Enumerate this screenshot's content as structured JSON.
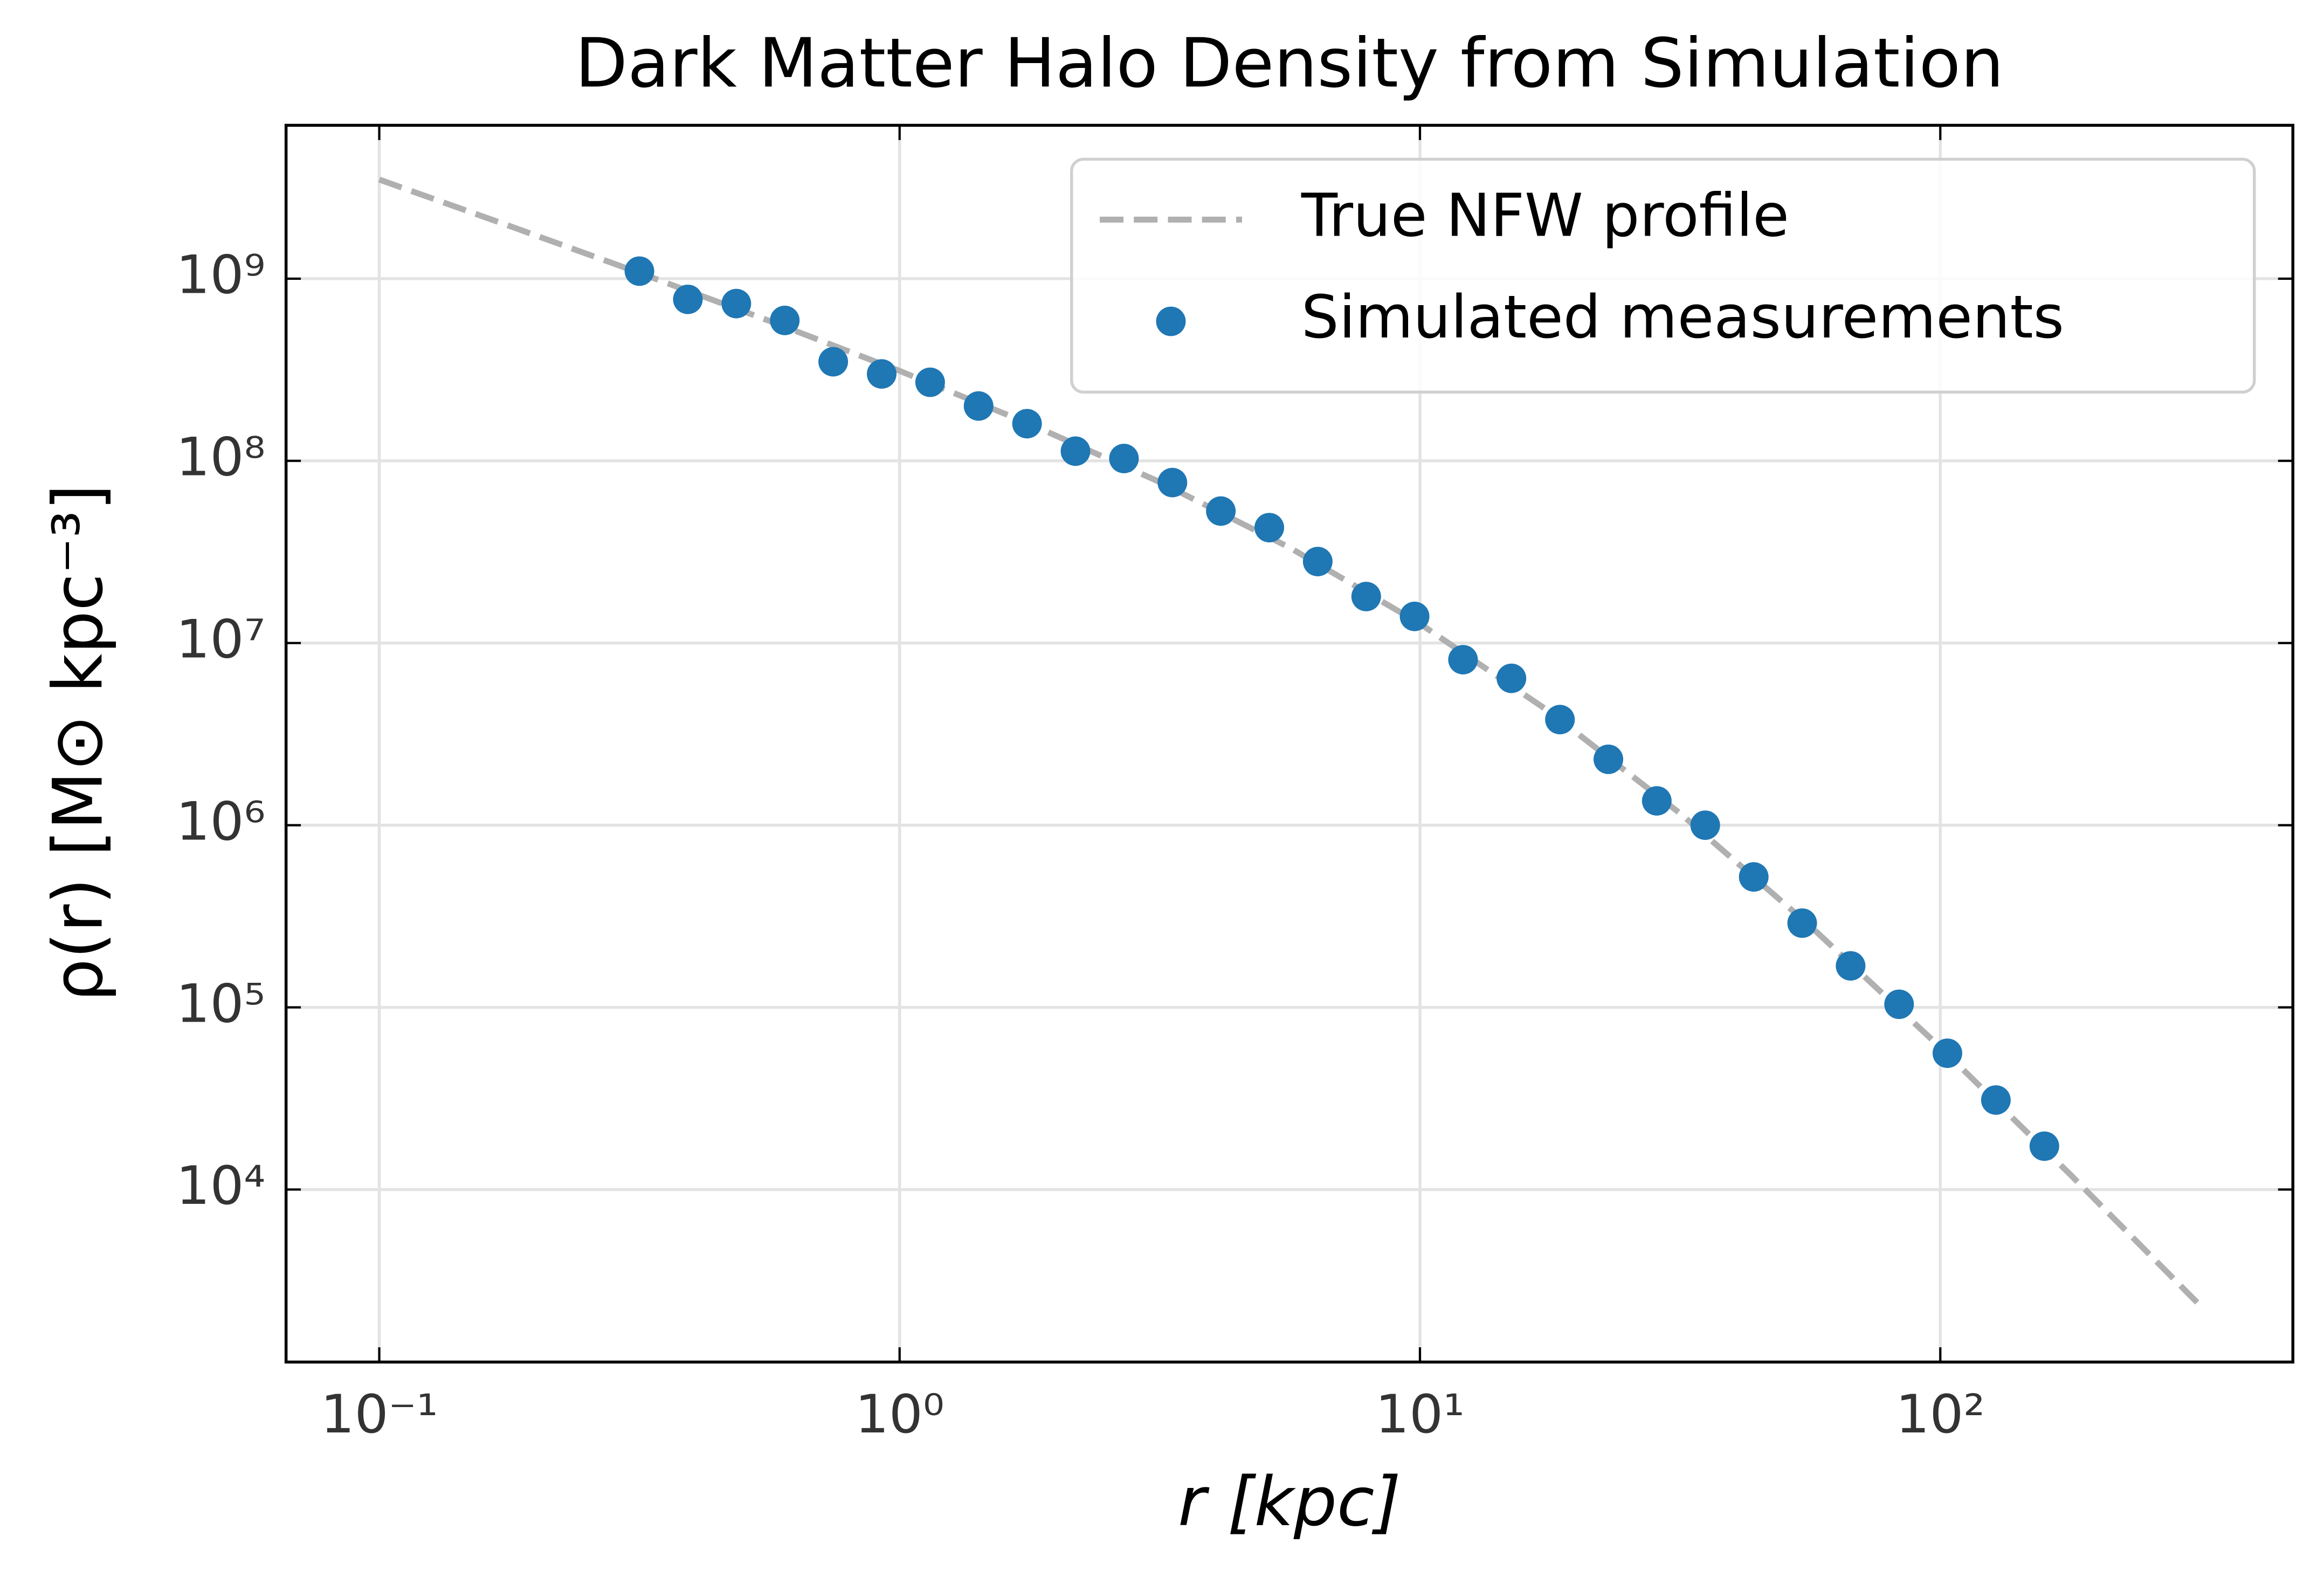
{
  "chart_data": {
    "type": "scatter",
    "title": "Dark Matter Halo Density from Simulation",
    "xlabel": "r [kpc]",
    "ylabel": "ρ(r) [M⊙ kpc⁻³]",
    "xscale": "log",
    "yscale": "log",
    "xlim": [
      0.0662,
      476
    ],
    "ylim": [
      1130,
      6950000000
    ],
    "xticks": [
      {
        "value": 0.1,
        "label": "10⁻¹"
      },
      {
        "value": 1,
        "label": "10⁰"
      },
      {
        "value": 10,
        "label": "10¹"
      },
      {
        "value": 100,
        "label": "10²"
      }
    ],
    "yticks": [
      {
        "value": 10000,
        "label": "10⁴"
      },
      {
        "value": 100000,
        "label": "10⁵"
      },
      {
        "value": 1000000,
        "label": "10⁶"
      },
      {
        "value": 10000000,
        "label": "10⁷"
      },
      {
        "value": 100000000,
        "label": "10⁸"
      },
      {
        "value": 1000000000,
        "label": "10⁹"
      }
    ],
    "grid": true,
    "legend": "upper right",
    "series": [
      {
        "name": "True NFW profile",
        "type": "line",
        "color": "#b0b0b0",
        "dashed": true,
        "x": [
          0.1,
          0.1778,
          0.3162,
          0.5623,
          1,
          1.778,
          3.162,
          5.623,
          10,
          17.78,
          31.62,
          56.23,
          100,
          177.8,
          316.2
        ],
        "values": [
          3500000000,
          1949000000,
          1076000000,
          586100000,
          311800000,
          159500000,
          76530000,
          33370000,
          12770000,
          4178000,
          1161000,
          279700,
          60350,
          12080,
          2301
        ]
      },
      {
        "name": "Simulated measurements",
        "type": "scatter",
        "color": "#1f77b4",
        "x": [
          0.3162,
          0.3918,
          0.4855,
          0.6016,
          0.7454,
          0.9237,
          1.1446,
          1.4183,
          1.7575,
          2.1777,
          2.6985,
          3.3437,
          4.1433,
          5.134,
          6.3617,
          7.8831,
          9.7657,
          12.1,
          14.99,
          18.58,
          23.02,
          28.52,
          35.34,
          43.8,
          54.27,
          67.24,
          83.33,
          103.2,
          127.9,
          158.5
        ],
        "values": [
          1100000000,
          770000000,
          730000000,
          590000000,
          350000000,
          300000000,
          270000000,
          200000000,
          160000000,
          113000000,
          103000000,
          76000000,
          53000000,
          43000000,
          28000000,
          18000000,
          14000000,
          8100000,
          6400000,
          3800000,
          2300000,
          1360000,
          1000000,
          520000,
          290000,
          169000,
          104000,
          56000,
          31000,
          17300
        ]
      }
    ]
  }
}
